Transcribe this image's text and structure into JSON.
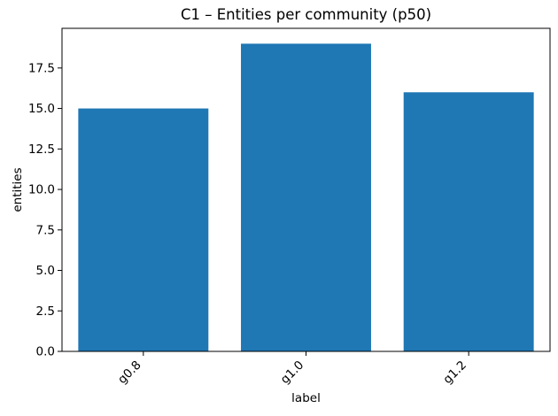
{
  "chart_data": {
    "type": "bar",
    "title": "C1 – Entities per community (p50)",
    "xlabel": "label",
    "ylabel": "entities",
    "categories": [
      "g0.8",
      "g1.0",
      "g1.2"
    ],
    "values": [
      15,
      19,
      16
    ],
    "ylim": [
      0,
      19.95
    ],
    "yticks": [
      0,
      2.5,
      5,
      7.5,
      10,
      12.5,
      15,
      17.5
    ],
    "ytick_labels": [
      "0.0",
      "2.5",
      "5.0",
      "7.5",
      "10.0",
      "12.5",
      "15.0",
      "17.5"
    ],
    "xtick_rotation_deg": 45,
    "bar_color": "#1f77b4",
    "bar_width_fraction": 0.8,
    "axis_color": "#000000",
    "grid": false,
    "legend": false
  }
}
